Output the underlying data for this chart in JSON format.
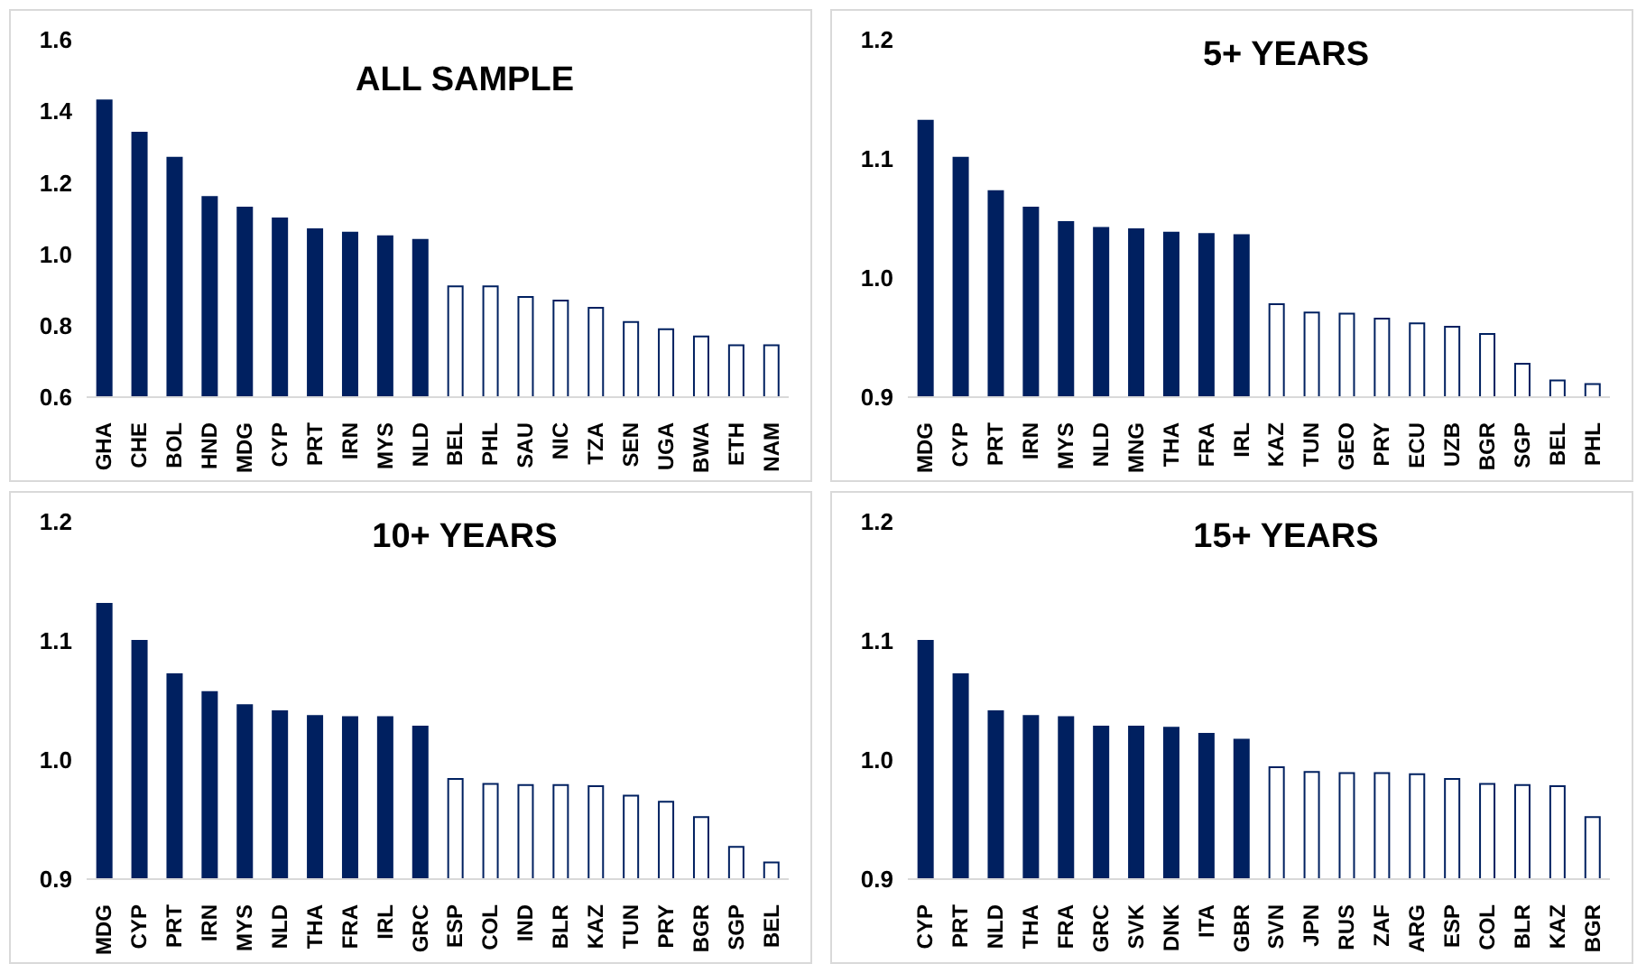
{
  "chart_data": [
    {
      "type": "bar",
      "title": "ALL SAMPLE",
      "categories": [
        "GHA",
        "CHE",
        "BOL",
        "HND",
        "MDG",
        "CYP",
        "PRT",
        "IRN",
        "MYS",
        "NLD",
        "BEL",
        "PHL",
        "SAU",
        "NIC",
        "TZA",
        "SEN",
        "UGA",
        "BWA",
        "ETH",
        "NAM"
      ],
      "values": [
        1.43,
        1.34,
        1.27,
        1.16,
        1.13,
        1.1,
        1.07,
        1.06,
        1.05,
        1.04,
        0.91,
        0.91,
        0.88,
        0.87,
        0.85,
        0.81,
        0.79,
        0.77,
        0.745,
        0.745
      ],
      "colors": [
        "#002060",
        "#002060",
        "#002060",
        "#002060",
        "#002060",
        "#002060",
        "#002060",
        "#002060",
        "#002060",
        "#002060",
        "#ffffff",
        "#ffffff",
        "#ffffff",
        "#ffffff",
        "#ffffff",
        "#ffffff",
        "#ffffff",
        "#ffffff",
        "#ffffff",
        "#ffffff"
      ],
      "ylim": [
        0.6,
        1.6
      ],
      "yticks": [
        {
          "value": 0.6,
          "label": "0.6"
        },
        {
          "value": 0.8,
          "label": "0.8"
        },
        {
          "value": 1.0,
          "label": "1.0"
        },
        {
          "value": 1.2,
          "label": "1.2"
        },
        {
          "value": 1.4,
          "label": "1.4"
        },
        {
          "value": 1.6,
          "label": "1.6"
        }
      ]
    },
    {
      "type": "bar",
      "title": "5+ YEARS",
      "categories": [
        "MDG",
        "CYP",
        "PRT",
        "IRN",
        "MYS",
        "NLD",
        "MNG",
        "THA",
        "FRA",
        "IRL",
        "KAZ",
        "TUN",
        "GEO",
        "PRY",
        "ECU",
        "UZB",
        "BGR",
        "SGP",
        "BEL",
        "PHL"
      ],
      "values": [
        1.132,
        1.101,
        1.073,
        1.059,
        1.047,
        1.042,
        1.041,
        1.038,
        1.037,
        1.036,
        0.978,
        0.971,
        0.97,
        0.966,
        0.962,
        0.959,
        0.953,
        0.928,
        0.914,
        0.911
      ],
      "colors": [
        "#002060",
        "#002060",
        "#002060",
        "#002060",
        "#002060",
        "#002060",
        "#002060",
        "#002060",
        "#002060",
        "#002060",
        "#ffffff",
        "#ffffff",
        "#ffffff",
        "#ffffff",
        "#ffffff",
        "#ffffff",
        "#ffffff",
        "#ffffff",
        "#ffffff",
        "#ffffff"
      ],
      "ylim": [
        0.9,
        1.2
      ],
      "yticks": [
        {
          "value": 0.9,
          "label": "0.9"
        },
        {
          "value": 1.0,
          "label": "1.0"
        },
        {
          "value": 1.1,
          "label": "1.1"
        },
        {
          "value": 1.2,
          "label": "1.2"
        }
      ]
    },
    {
      "type": "bar",
      "title": "10+ YEARS",
      "categories": [
        "MDG",
        "CYP",
        "PRT",
        "IRN",
        "MYS",
        "NLD",
        "THA",
        "FRA",
        "IRL",
        "GRC",
        "ESP",
        "COL",
        "IND",
        "BLR",
        "KAZ",
        "TUN",
        "PRY",
        "BGR",
        "SGP",
        "BEL"
      ],
      "values": [
        1.131,
        1.1,
        1.072,
        1.057,
        1.046,
        1.041,
        1.037,
        1.036,
        1.036,
        1.028,
        0.984,
        0.98,
        0.979,
        0.979,
        0.978,
        0.97,
        0.965,
        0.952,
        0.927,
        0.914
      ],
      "colors": [
        "#002060",
        "#002060",
        "#002060",
        "#002060",
        "#002060",
        "#002060",
        "#002060",
        "#002060",
        "#002060",
        "#002060",
        "#ffffff",
        "#ffffff",
        "#ffffff",
        "#ffffff",
        "#ffffff",
        "#ffffff",
        "#ffffff",
        "#ffffff",
        "#ffffff",
        "#ffffff"
      ],
      "ylim": [
        0.9,
        1.2
      ],
      "yticks": [
        {
          "value": 0.9,
          "label": "0.9"
        },
        {
          "value": 1.0,
          "label": "1.0"
        },
        {
          "value": 1.1,
          "label": "1.1"
        },
        {
          "value": 1.2,
          "label": "1.2"
        }
      ]
    },
    {
      "type": "bar",
      "title": "15+ YEARS",
      "categories": [
        "CYP",
        "PRT",
        "NLD",
        "THA",
        "FRA",
        "GRC",
        "SVK",
        "DNK",
        "ITA",
        "GBR",
        "SVN",
        "JPN",
        "RUS",
        "ZAF",
        "ARG",
        "ESP",
        "COL",
        "BLR",
        "KAZ",
        "BGR"
      ],
      "values": [
        1.1,
        1.072,
        1.041,
        1.037,
        1.036,
        1.028,
        1.028,
        1.027,
        1.022,
        1.017,
        0.994,
        0.99,
        0.989,
        0.989,
        0.988,
        0.984,
        0.98,
        0.979,
        0.978,
        0.952
      ],
      "colors": [
        "#002060",
        "#002060",
        "#002060",
        "#002060",
        "#002060",
        "#002060",
        "#002060",
        "#002060",
        "#002060",
        "#002060",
        "#ffffff",
        "#ffffff",
        "#ffffff",
        "#ffffff",
        "#ffffff",
        "#ffffff",
        "#ffffff",
        "#ffffff",
        "#ffffff",
        "#ffffff"
      ],
      "ylim": [
        0.9,
        1.2
      ],
      "yticks": [
        {
          "value": 0.9,
          "label": "0.9"
        },
        {
          "value": 1.0,
          "label": "1.0"
        },
        {
          "value": 1.1,
          "label": "1.1"
        },
        {
          "value": 1.2,
          "label": "1.2"
        }
      ]
    }
  ]
}
